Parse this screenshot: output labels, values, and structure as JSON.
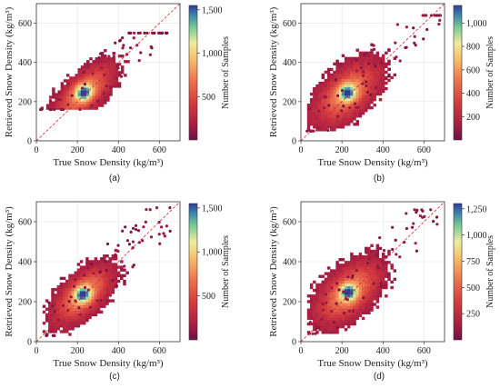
{
  "chart_data": [
    {
      "type": "heatmap",
      "caption": "(a)",
      "xlabel": "True Snow Density (kg/m³)",
      "ylabel": "Retrieved Snow Density (kg/m³)",
      "xlim": [
        0,
        700
      ],
      "ylim": [
        0,
        700
      ],
      "xticks": [
        "0",
        "200",
        "400",
        "600"
      ],
      "yticks": [
        "0",
        "200",
        "400",
        "600"
      ],
      "colorbar": {
        "label": "Number of Samples",
        "range": [
          0,
          1550
        ],
        "ticks": [
          500,
          1000,
          1500
        ],
        "tick_labels": [
          "500",
          "1,000",
          "1,500"
        ]
      },
      "reference_line": "1:1 dashed red",
      "density_core": {
        "x": 225,
        "y": 240,
        "spread_x": 65,
        "spread_y": 55
      },
      "cloud": {
        "x_min": 20,
        "x_max": 640,
        "y_min": 160,
        "y_max": 550
      }
    },
    {
      "type": "heatmap",
      "caption": "(b)",
      "xlabel": "True Snow Density (kg/m³)",
      "ylabel": "Retrieved Snow Density (kg/m³)",
      "xlim": [
        0,
        700
      ],
      "ylim": [
        0,
        700
      ],
      "xticks": [
        "0",
        "200",
        "400",
        "600"
      ],
      "yticks": [
        "0",
        "200",
        "400",
        "600"
      ],
      "colorbar": {
        "label": "Number of Samples",
        "range": [
          0,
          1150
        ],
        "ticks": [
          200,
          400,
          600,
          800,
          1000
        ],
        "tick_labels": [
          "200",
          "400",
          "600",
          "800",
          "1,000"
        ]
      },
      "reference_line": "1:1 dashed red",
      "density_core": {
        "x": 220,
        "y": 240,
        "spread_x": 70,
        "spread_y": 70
      },
      "cloud": {
        "x_min": 30,
        "x_max": 680,
        "y_min": 50,
        "y_max": 640
      }
    },
    {
      "type": "heatmap",
      "caption": "(c)",
      "xlabel": "True Snow Density (kg/m³)",
      "ylabel": "Retrieved Snow Density (kg/m³)",
      "xlim": [
        0,
        700
      ],
      "ylim": [
        0,
        700
      ],
      "xticks": [
        "0",
        "200",
        "400",
        "600"
      ],
      "yticks": [
        "0",
        "200",
        "400",
        "600"
      ],
      "colorbar": {
        "label": "Number of Samples",
        "range": [
          0,
          1550
        ],
        "ticks": [
          500,
          1000,
          1500
        ],
        "tick_labels": [
          "500",
          "1,000",
          "1,500"
        ]
      },
      "reference_line": "1:1 dashed red",
      "density_core": {
        "x": 220,
        "y": 230,
        "spread_x": 65,
        "spread_y": 60
      },
      "cloud": {
        "x_min": 30,
        "x_max": 660,
        "y_min": 30,
        "y_max": 670
      }
    },
    {
      "type": "heatmap",
      "caption": "(d)",
      "xlabel": "True Snow Density (kg/m³)",
      "ylabel": "Retrieved Snow Density (kg/m³)",
      "xlim": [
        0,
        700
      ],
      "ylim": [
        0,
        700
      ],
      "xticks": [
        "0",
        "200",
        "400",
        "600"
      ],
      "yticks": [
        "0",
        "200",
        "400",
        "600"
      ],
      "colorbar": {
        "label": "Number of Samples",
        "range": [
          0,
          1300
        ],
        "ticks": [
          250,
          500,
          750,
          1000,
          1250
        ],
        "tick_labels": [
          "250",
          "500",
          "750",
          "1,000",
          "1,250"
        ]
      },
      "reference_line": "1:1 dashed red",
      "density_core": {
        "x": 225,
        "y": 240,
        "spread_x": 70,
        "spread_y": 70
      },
      "cloud": {
        "x_min": 30,
        "x_max": 690,
        "y_min": 40,
        "y_max": 660
      }
    }
  ]
}
